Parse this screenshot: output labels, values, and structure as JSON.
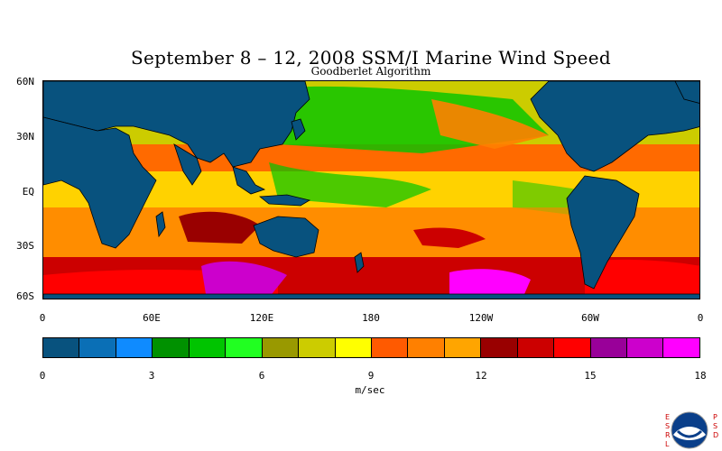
{
  "title": "September 8 – 12, 2008 SSM/I Marine Wind Speed",
  "subtitle": "Goodberlet Algorithm",
  "lat_labels": [
    "60N",
    "30N",
    "EQ",
    "30S",
    "60S"
  ],
  "lon_labels": [
    "0",
    "60E",
    "120E",
    "180",
    "120W",
    "60W",
    "0"
  ],
  "colorbar": {
    "colors": [
      "#08527e",
      "#0a6fb6",
      "#0f8bff",
      "#009100",
      "#00c400",
      "#21ff21",
      "#999900",
      "#cccc00",
      "#ffff00",
      "#ff5a00",
      "#ff8000",
      "#ffa500",
      "#990000",
      "#cc0000",
      "#ff0000",
      "#990099",
      "#cc00cc",
      "#ff00ff"
    ],
    "tick_labels": [
      "0",
      "3",
      "6",
      "9",
      "12",
      "15",
      "18"
    ],
    "units": "m/sec"
  },
  "logo": {
    "text": "NOAA",
    "left_letters": "ESRL",
    "right_letters": "PSD"
  },
  "colors": {
    "land": "#08527e",
    "background": "#ffffff",
    "coast": "#000000"
  }
}
